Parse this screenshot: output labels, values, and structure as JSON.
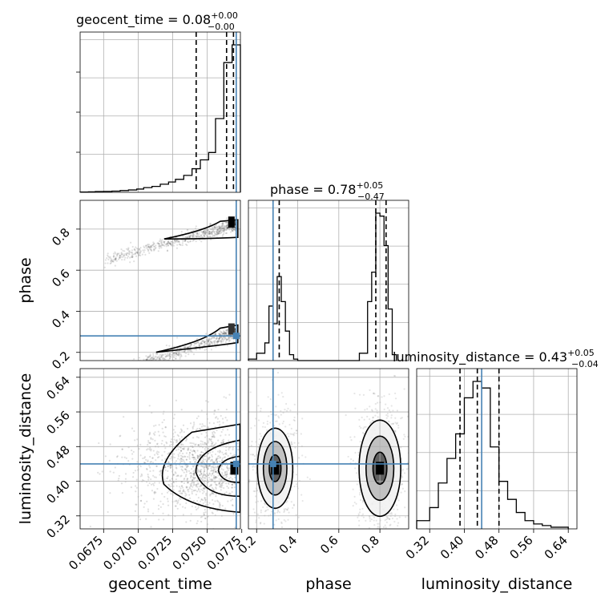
{
  "chart_data": {
    "type": "corner",
    "parameters": [
      "geocent_time",
      "phase",
      "luminosity_distance"
    ],
    "truth_color": "#4682b4",
    "truths": {
      "geocent_time": 0.0771,
      "phase": 0.28,
      "luminosity_distance": 0.44
    },
    "titles": {
      "geocent_time": {
        "prefix": "geocent_time = 0.08",
        "plus": "+0.00",
        "minus": "−0.00"
      },
      "phase": {
        "prefix": "phase = 0.78",
        "plus": "+0.05",
        "minus": "−0.47"
      },
      "luminosity_distance": {
        "prefix": "luminosity_distance = 0.43",
        "plus": "+0.05",
        "minus": "−0.04"
      }
    },
    "axes": {
      "geocent_time": {
        "label": "geocent_time",
        "range": [
          0.0658,
          0.0774
        ],
        "ticks": [
          0.0675,
          0.07,
          0.0725,
          0.075,
          0.0775
        ],
        "tick_labels": [
          "0.0675",
          "0.0700",
          "0.0725",
          "0.0750",
          "0.0775"
        ]
      },
      "phase": {
        "label": "phase",
        "range": [
          0.16,
          0.94
        ],
        "ticks": [
          0.2,
          0.4,
          0.6,
          0.8
        ],
        "tick_labels": [
          "0.2",
          "0.4",
          "0.6",
          "0.8"
        ]
      },
      "luminosity_distance": {
        "label": "luminosity_distance",
        "range": [
          0.29,
          0.66
        ],
        "ticks": [
          0.32,
          0.4,
          0.48,
          0.56,
          0.64
        ],
        "tick_labels": [
          "0.32",
          "0.40",
          "0.48",
          "0.56",
          "0.64"
        ]
      }
    },
    "histograms": {
      "geocent_time": {
        "bin_edges": [
          0.0658,
          0.0664,
          0.0669,
          0.0675,
          0.0681,
          0.0687,
          0.0693,
          0.0699,
          0.0704,
          0.071,
          0.0716,
          0.0722,
          0.0727,
          0.0733,
          0.0739,
          0.0745,
          0.0751,
          0.0756,
          0.0762,
          0.0768,
          0.0774
        ],
        "counts": [
          0.002,
          0.003,
          0.005,
          0.006,
          0.008,
          0.012,
          0.016,
          0.022,
          0.032,
          0.04,
          0.055,
          0.07,
          0.088,
          0.115,
          0.16,
          0.22,
          0.27,
          0.5,
          0.88,
          1.0
        ],
        "quantile_lines": [
          0.0742,
          0.0764,
          0.0769
        ]
      },
      "phase": {
        "bin_edges": [
          0.16,
          0.2,
          0.24,
          0.26,
          0.28,
          0.3,
          0.32,
          0.34,
          0.36,
          0.38,
          0.4,
          0.7,
          0.74,
          0.76,
          0.78,
          0.8,
          0.82,
          0.84,
          0.86,
          0.88
        ],
        "counts": [
          0.01,
          0.05,
          0.12,
          0.37,
          0.25,
          0.57,
          0.4,
          0.2,
          0.04,
          0.01,
          0,
          0.05,
          0.4,
          0.6,
          1.0,
          0.98,
          0.78,
          0.35,
          0.04
        ],
        "quantile_lines": [
          0.31,
          0.78,
          0.83
        ]
      },
      "luminosity_distance": {
        "bin_edges": [
          0.29,
          0.32,
          0.34,
          0.36,
          0.38,
          0.4,
          0.42,
          0.44,
          0.46,
          0.48,
          0.5,
          0.52,
          0.54,
          0.56,
          0.58,
          0.6,
          0.62,
          0.64
        ],
        "counts": [
          0.05,
          0.13,
          0.28,
          0.43,
          0.58,
          0.8,
          0.9,
          0.86,
          0.5,
          0.29,
          0.18,
          0.1,
          0.05,
          0.03,
          0.02,
          0.01,
          0.01
        ],
        "quantile_lines": [
          0.39,
          0.43,
          0.48
        ]
      }
    },
    "contour_levels": 3,
    "grid": true
  }
}
